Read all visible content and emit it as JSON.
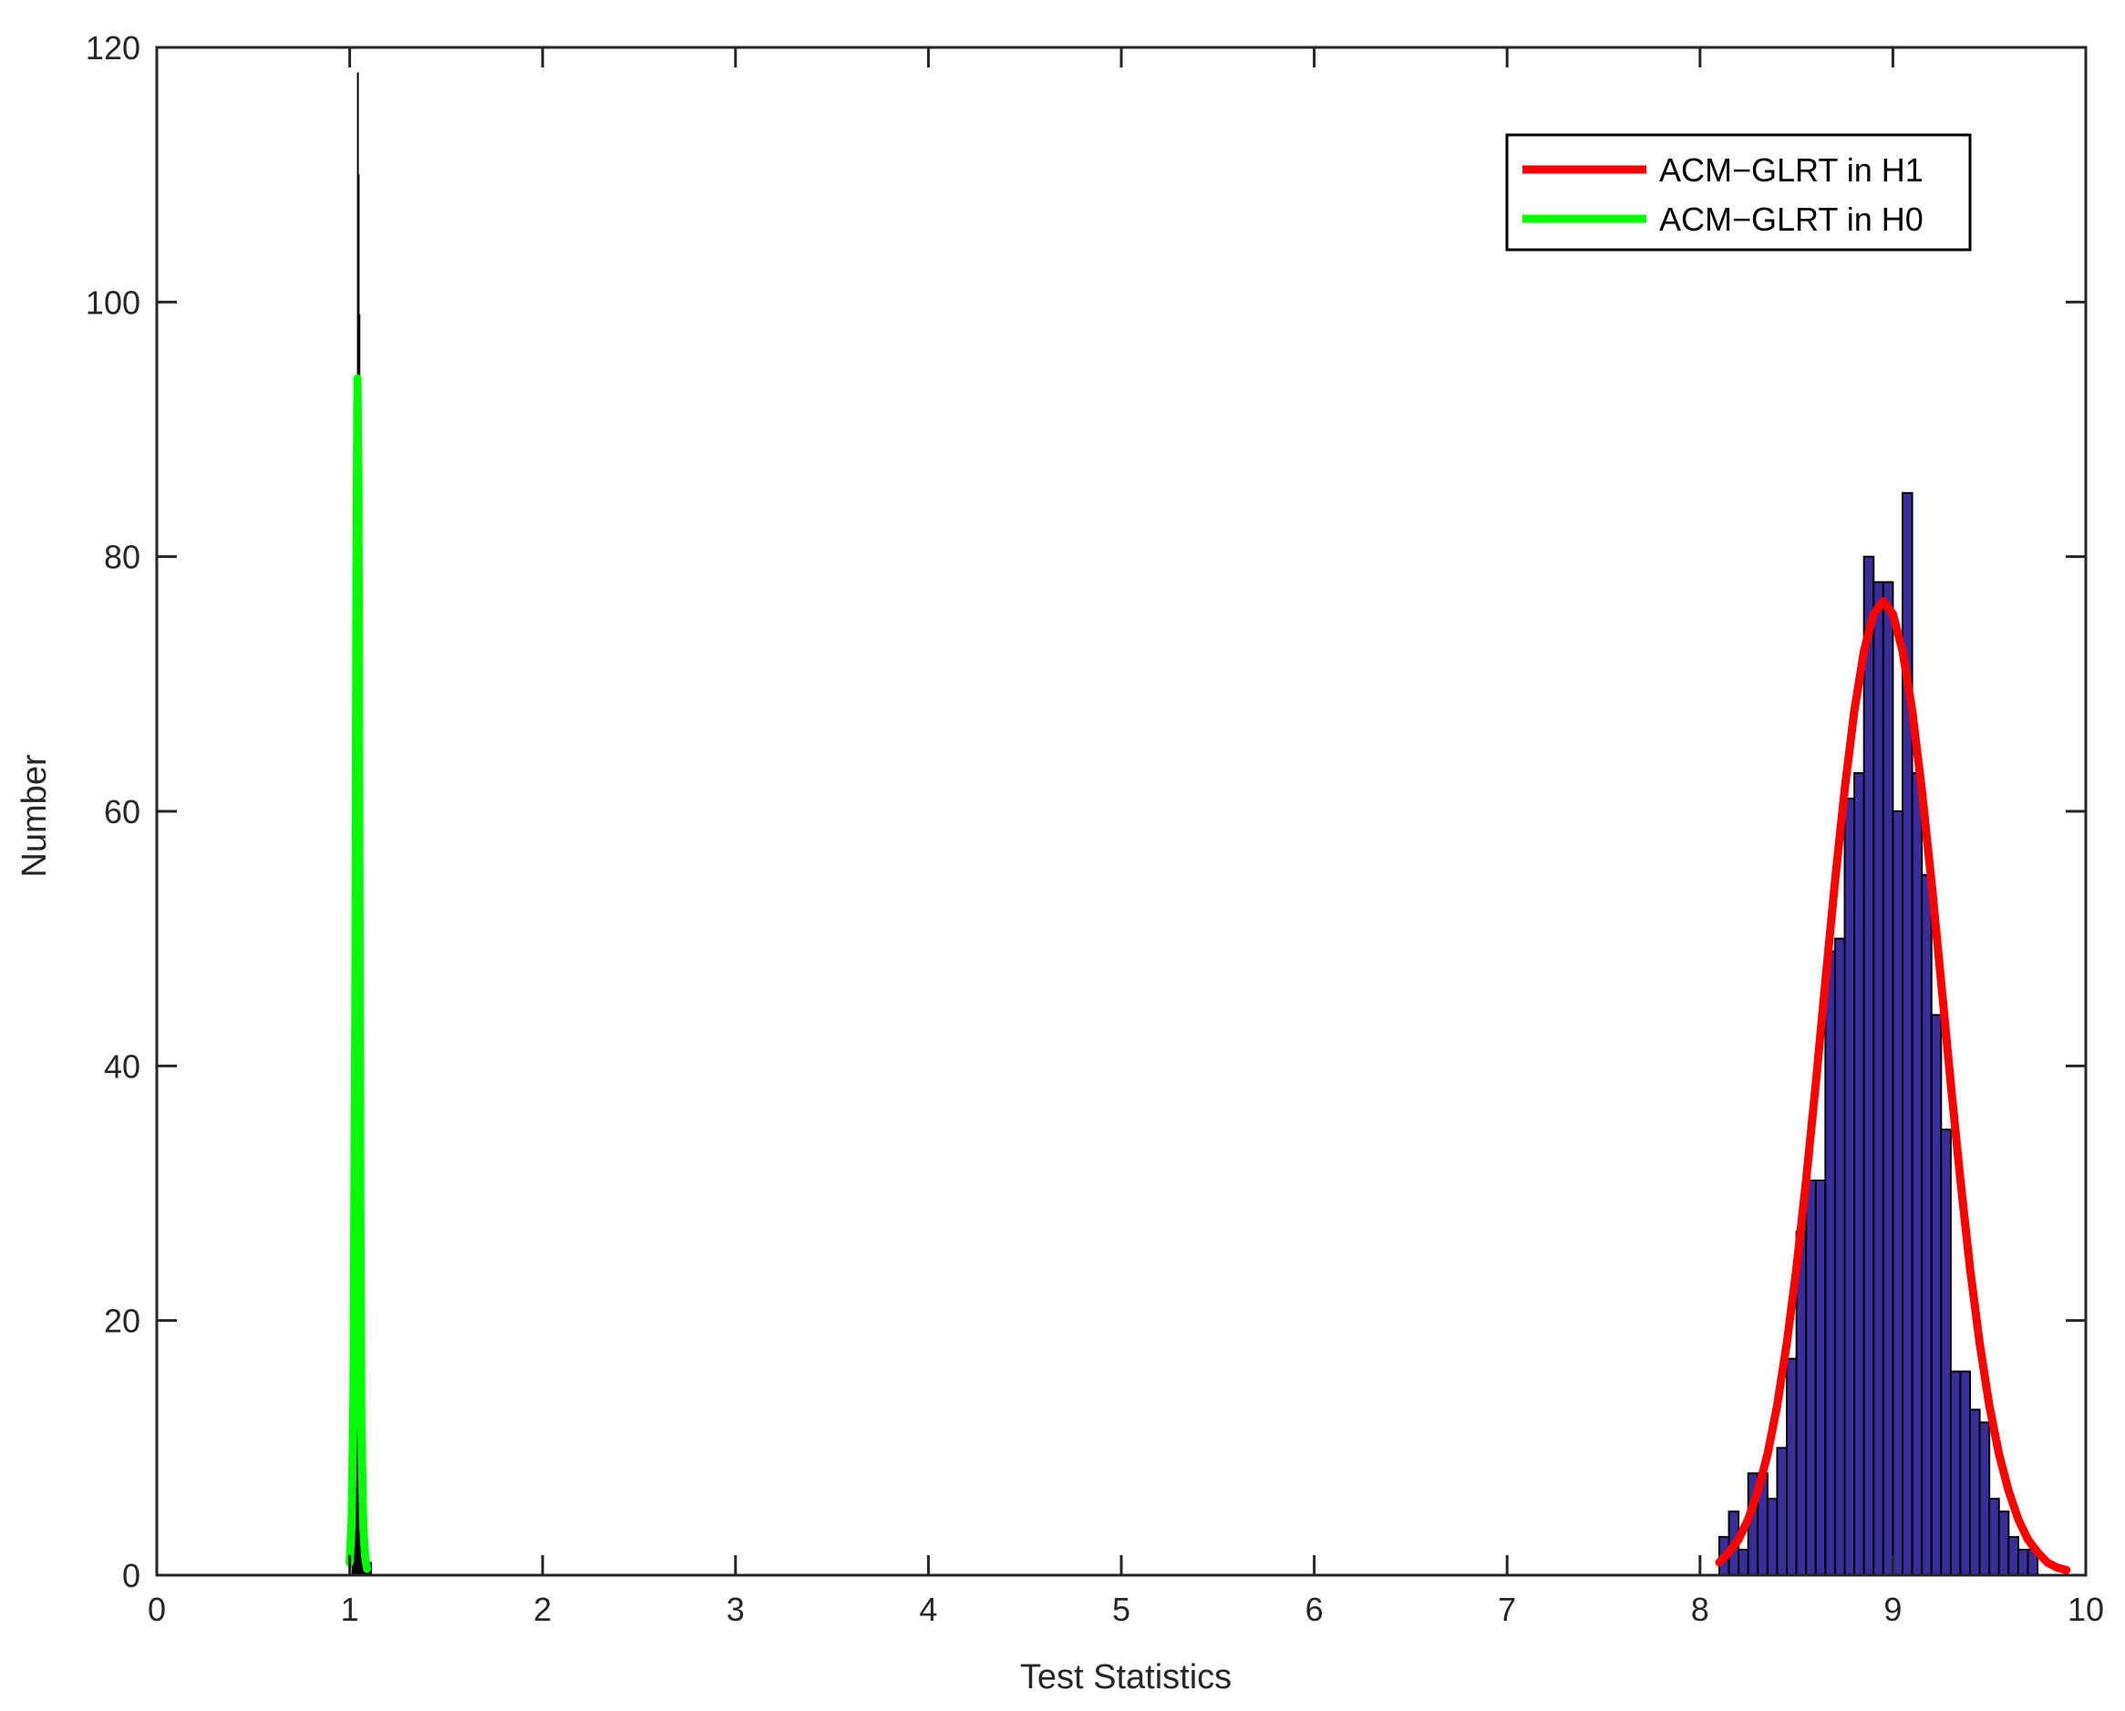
{
  "chart_data": {
    "type": "bar",
    "xlabel": "Test Statistics",
    "ylabel": "Number",
    "xlim": [
      0,
      10
    ],
    "ylim": [
      0,
      120
    ],
    "xticks": [
      "0",
      "1",
      "2",
      "3",
      "4",
      "5",
      "6",
      "7",
      "8",
      "9",
      "10"
    ],
    "yticks": [
      "0",
      "20",
      "40",
      "60",
      "80",
      "100",
      "120"
    ],
    "grid": false,
    "legend_position": "top-right",
    "colors": {
      "h1_hist": "#3a2f9a",
      "h0_hist": "#000000",
      "h1_fit": "#ff0000",
      "h0_fit": "#00ff00",
      "axis": "#262626"
    },
    "histograms": [
      {
        "bin_width": 0.05,
        "bins": [
          {
            "x": 8.1,
            "count": 3
          },
          {
            "x": 8.15,
            "count": 5
          },
          {
            "x": 8.2,
            "count": 2
          },
          {
            "x": 8.25,
            "count": 8
          },
          {
            "x": 8.3,
            "count": 8
          },
          {
            "x": 8.35,
            "count": 6
          },
          {
            "x": 8.4,
            "count": 10
          },
          {
            "x": 8.45,
            "count": 17
          },
          {
            "x": 8.5,
            "count": 27
          },
          {
            "x": 8.55,
            "count": 31
          },
          {
            "x": 8.6,
            "count": 31
          },
          {
            "x": 8.65,
            "count": 49
          },
          {
            "x": 8.7,
            "count": 50
          },
          {
            "x": 8.75,
            "count": 61
          },
          {
            "x": 8.8,
            "count": 63
          },
          {
            "x": 8.85,
            "count": 80
          },
          {
            "x": 8.9,
            "count": 78
          },
          {
            "x": 8.95,
            "count": 78
          },
          {
            "x": 9.0,
            "count": 60
          },
          {
            "x": 9.05,
            "count": 85
          },
          {
            "x": 9.1,
            "count": 63
          },
          {
            "x": 9.15,
            "count": 55
          },
          {
            "x": 9.2,
            "count": 44
          },
          {
            "x": 9.25,
            "count": 35
          },
          {
            "x": 9.3,
            "count": 16
          },
          {
            "x": 9.35,
            "count": 16
          },
          {
            "x": 9.4,
            "count": 13
          },
          {
            "x": 9.45,
            "count": 12
          },
          {
            "x": 9.5,
            "count": 6
          },
          {
            "x": 9.55,
            "count": 5
          },
          {
            "x": 9.6,
            "count": 3
          },
          {
            "x": 9.65,
            "count": 2
          },
          {
            "x": 9.7,
            "count": 2
          }
        ]
      },
      {
        "bin_width": 0.004,
        "bins": [
          {
            "x": 1.012,
            "count": 1
          },
          {
            "x": 1.016,
            "count": 1
          },
          {
            "x": 1.02,
            "count": 1
          },
          {
            "x": 1.024,
            "count": 3
          },
          {
            "x": 1.028,
            "count": 6
          },
          {
            "x": 1.032,
            "count": 18
          },
          {
            "x": 1.036,
            "count": 50
          },
          {
            "x": 1.04,
            "count": 118
          },
          {
            "x": 1.044,
            "count": 110
          },
          {
            "x": 1.048,
            "count": 99
          },
          {
            "x": 1.052,
            "count": 29
          },
          {
            "x": 1.056,
            "count": 8
          },
          {
            "x": 1.06,
            "count": 3
          },
          {
            "x": 1.064,
            "count": 1
          },
          {
            "x": 1.068,
            "count": 1
          },
          {
            "x": 1.072,
            "count": 1
          },
          {
            "x": 1.08,
            "count": 1
          },
          {
            "x": 1.09,
            "count": 1
          },
          {
            "x": 1.1,
            "count": 1
          },
          {
            "x": 1.108,
            "count": 1
          }
        ]
      }
    ],
    "series": [
      {
        "name": "ACM−GLRT in H1",
        "x": [
          8.1,
          8.15,
          8.2,
          8.25,
          8.3,
          8.35,
          8.4,
          8.45,
          8.5,
          8.55,
          8.6,
          8.65,
          8.7,
          8.75,
          8.8,
          8.85,
          8.9,
          8.95,
          9.0,
          9.05,
          9.1,
          9.15,
          9.2,
          9.25,
          9.3,
          9.35,
          9.4,
          9.45,
          9.5,
          9.55,
          9.6,
          9.65,
          9.7,
          9.75,
          9.8,
          9.85,
          9.9
        ],
        "y": [
          1.0,
          1.8,
          2.8,
          4.4,
          6.6,
          9.5,
          13.3,
          18.2,
          24.1,
          31.0,
          38.6,
          46.6,
          54.5,
          61.7,
          67.9,
          72.6,
          75.5,
          76.5,
          75.5,
          72.6,
          67.9,
          61.7,
          54.5,
          46.6,
          38.6,
          31.0,
          24.1,
          18.2,
          13.3,
          9.5,
          6.6,
          4.4,
          2.8,
          1.8,
          1.0,
          0.6,
          0.4
        ]
      },
      {
        "name": "ACM−GLRT in H0",
        "x": [
          1.0,
          1.01,
          1.02,
          1.03,
          1.035,
          1.04,
          1.045,
          1.05,
          1.055,
          1.06,
          1.07,
          1.08,
          1.09
        ],
        "y": [
          1.0,
          4.0,
          14.0,
          46.0,
          78.0,
          94.0,
          86.0,
          58.0,
          30.0,
          12.0,
          4.0,
          1.5,
          0.5
        ]
      }
    ]
  }
}
